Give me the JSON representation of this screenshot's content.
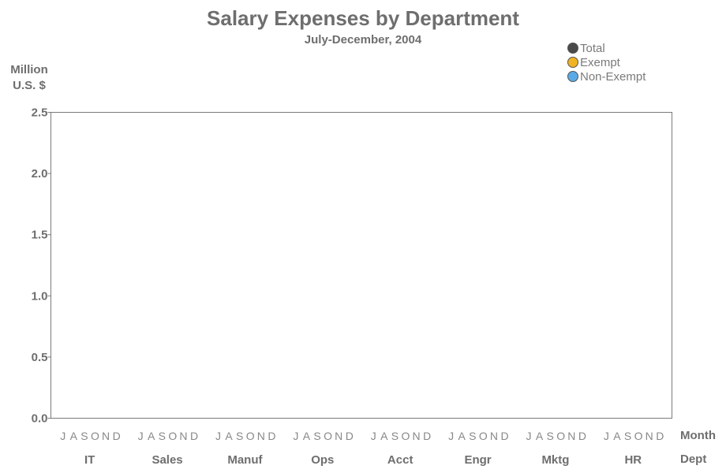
{
  "chart_data": {
    "type": "line",
    "title": "Salary Expenses by Department",
    "subtitle": "July-December, 2004",
    "ylabel_lines": [
      "Million",
      "U.S. $"
    ],
    "ylim": [
      0,
      2.5
    ],
    "yticks": [
      "0.0",
      "0.5",
      "1.0",
      "1.5",
      "2.0",
      "2.5"
    ],
    "ytick_values": [
      0,
      0.5,
      1.0,
      1.5,
      2.0,
      2.5
    ],
    "month_axis_label": "Month",
    "dept_axis_label": "Dept",
    "months": [
      "J",
      "A",
      "S",
      "O",
      "N",
      "D"
    ],
    "departments": [
      "IT",
      "Sales",
      "Manuf",
      "Ops",
      "Acct",
      "Engr",
      "Mktg",
      "HR"
    ],
    "legend_position": "top-right",
    "grid": false,
    "series": [
      {
        "name": "Total",
        "color": "#4a4a4a"
      },
      {
        "name": "Exempt",
        "color": "#f0b323"
      },
      {
        "name": "Non-Exempt",
        "color": "#5aaae6"
      }
    ]
  }
}
